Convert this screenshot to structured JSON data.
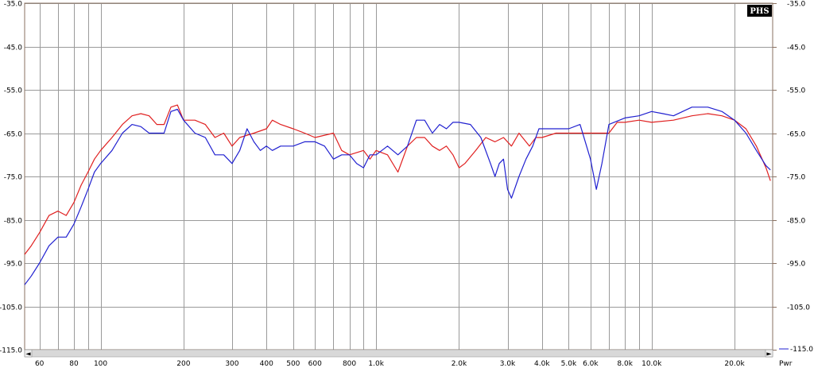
{
  "badge": "PHS",
  "legend_right_label": "-115.0",
  "pwr_label": "Pwr",
  "scroll_left_glyph": "◄",
  "scroll_right_glyph": "►",
  "chart_data": {
    "type": "line",
    "x_scale": "log",
    "xlim": [
      53,
      27500
    ],
    "ylim": [
      -115,
      -35
    ],
    "grid": true,
    "y_ticks": [
      -35,
      -45,
      -55,
      -65,
      -75,
      -85,
      -95,
      -105,
      -115
    ],
    "y_tick_labels": [
      "-35.0",
      "-45.0",
      "-55.0",
      "-65.0",
      "-75.0",
      "-85.0",
      "-95.0",
      "-105.0",
      "-115.0"
    ],
    "x_grid_freqs": [
      60,
      70,
      80,
      90,
      100,
      200,
      300,
      400,
      500,
      600,
      700,
      800,
      900,
      1000,
      2000,
      3000,
      4000,
      5000,
      6000,
      7000,
      8000,
      9000,
      10000,
      20000
    ],
    "x_ticks": [
      {
        "f": 60,
        "label": "60"
      },
      {
        "f": 80,
        "label": "80"
      },
      {
        "f": 100,
        "label": "100"
      },
      {
        "f": 200,
        "label": "200"
      },
      {
        "f": 300,
        "label": "300"
      },
      {
        "f": 400,
        "label": "400"
      },
      {
        "f": 500,
        "label": "500"
      },
      {
        "f": 600,
        "label": "600"
      },
      {
        "f": 800,
        "label": "800"
      },
      {
        "f": 1000,
        "label": "1.0k"
      },
      {
        "f": 2000,
        "label": "2.0k"
      },
      {
        "f": 3000,
        "label": "3.0k"
      },
      {
        "f": 4000,
        "label": "4.0k"
      },
      {
        "f": 5000,
        "label": "5.0k"
      },
      {
        "f": 6000,
        "label": "6.0k"
      },
      {
        "f": 8000,
        "label": "8.0k"
      },
      {
        "f": 10000,
        "label": "10.0k"
      },
      {
        "f": 20000,
        "label": "20.0k"
      }
    ],
    "series": [
      {
        "color": "#e02020",
        "points": [
          [
            53,
            -93
          ],
          [
            56,
            -91
          ],
          [
            60,
            -88
          ],
          [
            65,
            -84
          ],
          [
            70,
            -83
          ],
          [
            75,
            -84
          ],
          [
            80,
            -81
          ],
          [
            85,
            -77
          ],
          [
            90,
            -74
          ],
          [
            95,
            -71
          ],
          [
            100,
            -69
          ],
          [
            110,
            -66
          ],
          [
            120,
            -63
          ],
          [
            130,
            -61
          ],
          [
            140,
            -60.5
          ],
          [
            150,
            -61
          ],
          [
            160,
            -63
          ],
          [
            170,
            -63
          ],
          [
            180,
            -59
          ],
          [
            190,
            -58.5
          ],
          [
            200,
            -62
          ],
          [
            220,
            -62
          ],
          [
            240,
            -63
          ],
          [
            260,
            -66
          ],
          [
            280,
            -65
          ],
          [
            300,
            -68
          ],
          [
            320,
            -66
          ],
          [
            360,
            -65
          ],
          [
            400,
            -64
          ],
          [
            420,
            -62
          ],
          [
            450,
            -63
          ],
          [
            500,
            -64
          ],
          [
            550,
            -65
          ],
          [
            600,
            -66
          ],
          [
            700,
            -65
          ],
          [
            750,
            -69
          ],
          [
            800,
            -70
          ],
          [
            900,
            -69
          ],
          [
            950,
            -71
          ],
          [
            1000,
            -69
          ],
          [
            1100,
            -70
          ],
          [
            1200,
            -74
          ],
          [
            1300,
            -68
          ],
          [
            1400,
            -66
          ],
          [
            1500,
            -66
          ],
          [
            1600,
            -68
          ],
          [
            1700,
            -69
          ],
          [
            1800,
            -68
          ],
          [
            1900,
            -70
          ],
          [
            2000,
            -73
          ],
          [
            2100,
            -72
          ],
          [
            2300,
            -69
          ],
          [
            2500,
            -66
          ],
          [
            2700,
            -67
          ],
          [
            2900,
            -66
          ],
          [
            3100,
            -68
          ],
          [
            3300,
            -65
          ],
          [
            3600,
            -68
          ],
          [
            3800,
            -66
          ],
          [
            4000,
            -66
          ],
          [
            4500,
            -65
          ],
          [
            5000,
            -65
          ],
          [
            6000,
            -65
          ],
          [
            7000,
            -65
          ],
          [
            7500,
            -62.5
          ],
          [
            8000,
            -62.5
          ],
          [
            9000,
            -62
          ],
          [
            10000,
            -62.5
          ],
          [
            12000,
            -62
          ],
          [
            14000,
            -61
          ],
          [
            16000,
            -60.5
          ],
          [
            18000,
            -61
          ],
          [
            20000,
            -62
          ],
          [
            22000,
            -64
          ],
          [
            24000,
            -68
          ],
          [
            26000,
            -73
          ],
          [
            27000,
            -76
          ]
        ]
      },
      {
        "color": "#2020d0",
        "points": [
          [
            53,
            -100
          ],
          [
            56,
            -98
          ],
          [
            60,
            -95
          ],
          [
            65,
            -91
          ],
          [
            70,
            -89
          ],
          [
            75,
            -89
          ],
          [
            80,
            -86
          ],
          [
            85,
            -82
          ],
          [
            90,
            -78
          ],
          [
            95,
            -74
          ],
          [
            100,
            -72
          ],
          [
            110,
            -69
          ],
          [
            120,
            -65
          ],
          [
            130,
            -63
          ],
          [
            140,
            -63.5
          ],
          [
            150,
            -65
          ],
          [
            160,
            -65
          ],
          [
            170,
            -65
          ],
          [
            180,
            -60
          ],
          [
            190,
            -59.5
          ],
          [
            200,
            -62
          ],
          [
            220,
            -65
          ],
          [
            240,
            -66
          ],
          [
            260,
            -70
          ],
          [
            280,
            -70
          ],
          [
            300,
            -72
          ],
          [
            320,
            -69
          ],
          [
            340,
            -64
          ],
          [
            360,
            -67
          ],
          [
            380,
            -69
          ],
          [
            400,
            -68
          ],
          [
            420,
            -69
          ],
          [
            450,
            -68
          ],
          [
            500,
            -68
          ],
          [
            550,
            -67
          ],
          [
            600,
            -67
          ],
          [
            650,
            -68
          ],
          [
            700,
            -71
          ],
          [
            750,
            -70
          ],
          [
            800,
            -70
          ],
          [
            850,
            -72
          ],
          [
            900,
            -73
          ],
          [
            950,
            -70
          ],
          [
            1000,
            -70
          ],
          [
            1100,
            -68
          ],
          [
            1200,
            -70
          ],
          [
            1300,
            -68
          ],
          [
            1400,
            -62
          ],
          [
            1500,
            -62
          ],
          [
            1600,
            -65
          ],
          [
            1700,
            -63
          ],
          [
            1800,
            -64
          ],
          [
            1900,
            -62.5
          ],
          [
            2000,
            -62.5
          ],
          [
            2200,
            -63
          ],
          [
            2400,
            -66
          ],
          [
            2600,
            -72
          ],
          [
            2700,
            -75
          ],
          [
            2800,
            -72
          ],
          [
            2900,
            -71
          ],
          [
            3000,
            -78
          ],
          [
            3100,
            -80
          ],
          [
            3300,
            -75
          ],
          [
            3500,
            -71
          ],
          [
            3700,
            -68
          ],
          [
            3900,
            -64
          ],
          [
            4200,
            -64
          ],
          [
            4600,
            -64
          ],
          [
            5000,
            -64
          ],
          [
            5500,
            -63
          ],
          [
            6000,
            -71
          ],
          [
            6300,
            -78
          ],
          [
            6600,
            -72
          ],
          [
            7000,
            -63
          ],
          [
            8000,
            -61.5
          ],
          [
            9000,
            -61
          ],
          [
            10000,
            -60
          ],
          [
            11000,
            -60.5
          ],
          [
            12000,
            -61
          ],
          [
            14000,
            -59
          ],
          [
            16000,
            -59
          ],
          [
            18000,
            -60
          ],
          [
            20000,
            -62
          ],
          [
            22000,
            -65
          ],
          [
            24000,
            -69
          ],
          [
            26000,
            -72.5
          ],
          [
            27000,
            -73.5
          ]
        ]
      }
    ]
  }
}
